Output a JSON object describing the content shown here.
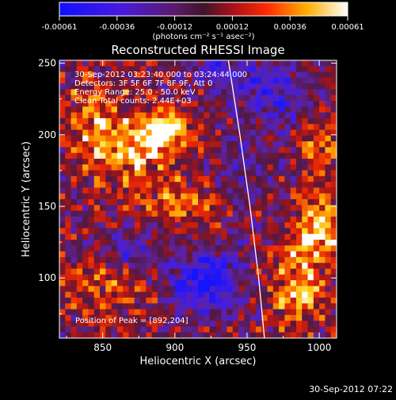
{
  "colorbar": {
    "ticks": [
      "-0.00061",
      "-0.00036",
      "-0.00012",
      "0.00012",
      "0.00036",
      "0.00061"
    ],
    "unit_label": "(photons cm⁻² s⁻¹ asec⁻²)"
  },
  "info_lines": [
    "30-Sep-2012 03:23:40.000 to 03:24:44.000",
    "Detectors: 3F 5F 6F 7F 8F 9F, Att 0",
    "Energy Range: 25.0 - 50.0 keV",
    "Clean    Total counts: 2.44E+03"
  ],
  "peak_label": "Position of Peak = [892,204]",
  "footer_timestamp": "30-Sep-2012 07:22",
  "chart_data": {
    "type": "heatmap",
    "title": "Reconstructed RHESSI Image",
    "xlabel": "Heliocentric X (arcsec)",
    "ylabel": "Heliocentric Y (arcsec)",
    "xlim": [
      820,
      1012
    ],
    "ylim": [
      58,
      252
    ],
    "xticks": [
      850,
      900,
      950,
      1000
    ],
    "yticks": [
      100,
      150,
      200,
      250
    ],
    "colormap": "blue-purple-red-yellow-white",
    "color_range": [
      -0.00061,
      0.00061
    ],
    "features": {
      "limb_curve": [
        [
          937,
          252
        ],
        [
          945,
          200
        ],
        [
          952,
          150
        ],
        [
          958,
          100
        ],
        [
          962,
          58
        ]
      ],
      "peak_position": [
        892,
        204
      ]
    }
  }
}
